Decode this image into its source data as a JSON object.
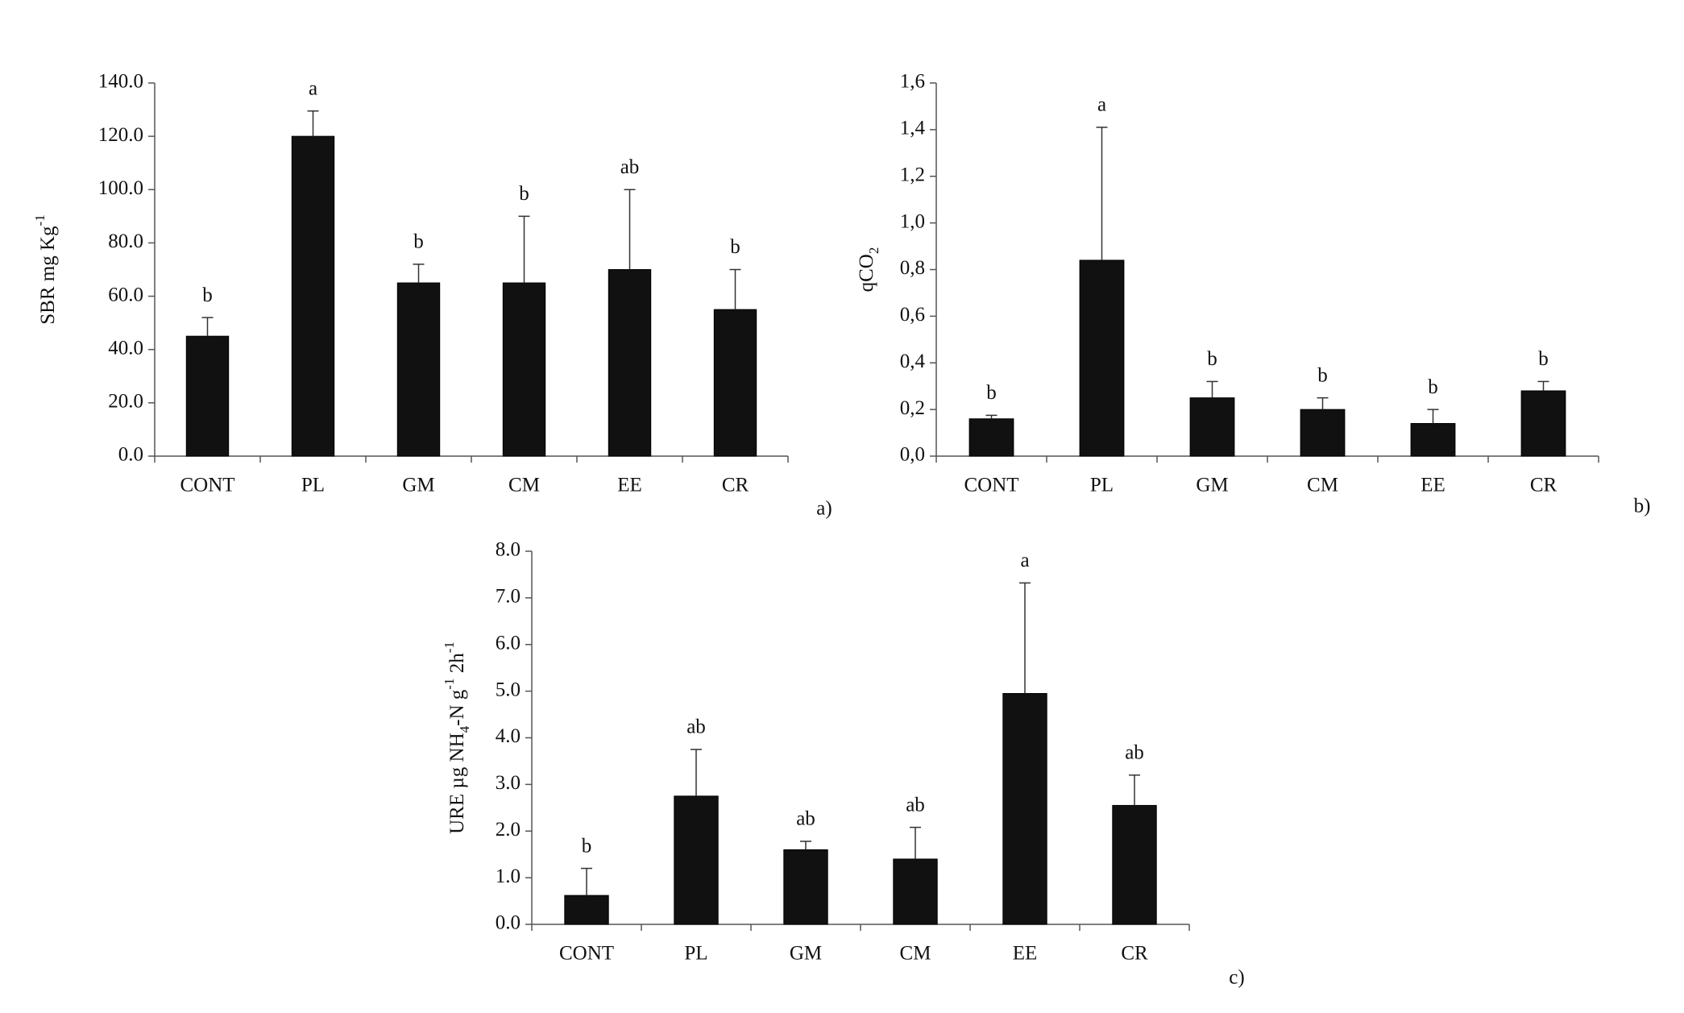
{
  "chart_data": [
    {
      "type": "bar",
      "panel_label": "a)",
      "ylabel": [
        {
          "text": "SBR mg Kg"
        },
        {
          "text": "-1",
          "shift": "super"
        }
      ],
      "categories": [
        "CONT",
        "PL",
        "GM",
        "CM",
        "EE",
        "CR"
      ],
      "values": [
        45,
        120,
        65,
        65,
        70,
        55
      ],
      "errors": [
        7,
        9.5,
        7,
        25,
        30,
        15
      ],
      "annotations": [
        "b",
        "a",
        "b",
        "b",
        "ab",
        "b"
      ],
      "color": "#111111",
      "ylim": [
        0,
        140
      ],
      "yticks": [
        {
          "value": 0,
          "label": "0.0"
        },
        {
          "value": 20,
          "label": "20.0"
        },
        {
          "value": 40,
          "label": "40.0"
        },
        {
          "value": 60,
          "label": "60.0"
        },
        {
          "value": 80,
          "label": "80.0"
        },
        {
          "value": 100,
          "label": "100.0"
        },
        {
          "value": 120,
          "label": "120.0"
        },
        {
          "value": 140,
          "label": "140.0"
        }
      ]
    },
    {
      "type": "bar",
      "panel_label": "b)",
      "ylabel": [
        {
          "text": "qCO"
        },
        {
          "text": "2",
          "shift": "sub"
        }
      ],
      "categories": [
        "CONT",
        "PL",
        "GM",
        "CM",
        "EE",
        "CR"
      ],
      "values": [
        0.16,
        0.84,
        0.25,
        0.2,
        0.14,
        0.28
      ],
      "errors": [
        0.015,
        0.57,
        0.07,
        0.05,
        0.06,
        0.04
      ],
      "annotations": [
        "b",
        "a",
        "b",
        "b",
        "b",
        "b"
      ],
      "color": "#111111",
      "ylim": [
        0,
        1.6
      ],
      "yticks": [
        {
          "value": 0,
          "label": "0,0"
        },
        {
          "value": 0.2,
          "label": "0,2"
        },
        {
          "value": 0.4,
          "label": "0,4"
        },
        {
          "value": 0.6,
          "label": "0,6"
        },
        {
          "value": 0.8,
          "label": "0,8"
        },
        {
          "value": 1.0,
          "label": "1,0"
        },
        {
          "value": 1.2,
          "label": "1,2"
        },
        {
          "value": 1.4,
          "label": "1,4"
        },
        {
          "value": 1.6,
          "label": "1,6"
        }
      ]
    },
    {
      "type": "bar",
      "panel_label": "c)",
      "ylabel": [
        {
          "text": "URE µg  NH"
        },
        {
          "text": "4",
          "shift": "sub"
        },
        {
          "text": "-N g"
        },
        {
          "text": "-1",
          "shift": "super"
        },
        {
          "text": " 2h"
        },
        {
          "text": "-1",
          "shift": "super"
        }
      ],
      "categories": [
        "CONT",
        "PL",
        "GM",
        "CM",
        "EE",
        "CR"
      ],
      "values": [
        0.62,
        2.75,
        1.6,
        1.4,
        4.95,
        2.55
      ],
      "errors": [
        0.58,
        1.0,
        0.18,
        0.68,
        2.37,
        0.65
      ],
      "annotations": [
        "b",
        "ab",
        "ab",
        "ab",
        "a",
        "ab"
      ],
      "color": "#111111",
      "ylim": [
        0,
        8
      ],
      "yticks": [
        {
          "value": 0,
          "label": "0.0"
        },
        {
          "value": 1,
          "label": "1.0"
        },
        {
          "value": 2,
          "label": "2.0"
        },
        {
          "value": 3,
          "label": "3.0"
        },
        {
          "value": 4,
          "label": "4.0"
        },
        {
          "value": 5,
          "label": "5.0"
        },
        {
          "value": 6,
          "label": "6.0"
        },
        {
          "value": 7,
          "label": "7.0"
        },
        {
          "value": 8,
          "label": "8.0"
        }
      ]
    }
  ]
}
